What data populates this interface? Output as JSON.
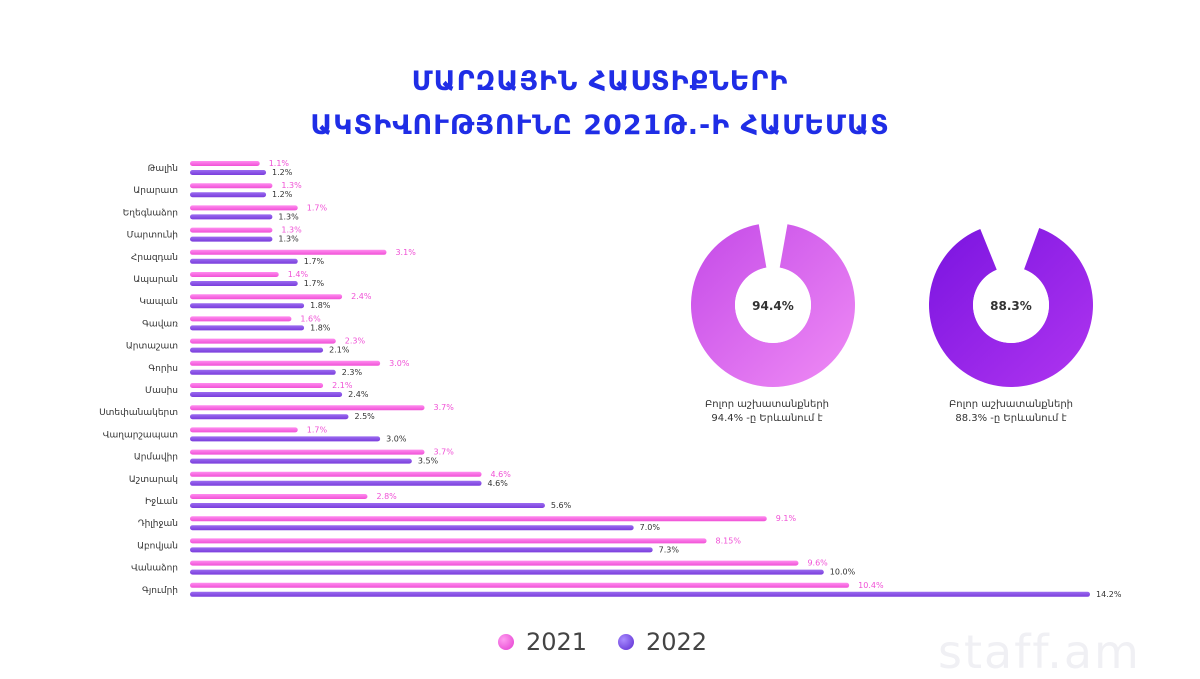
{
  "title": {
    "line1": "ՄԱՐԶԱՅԻՆ ՀԱՍՏԻՔՆԵՐԻ",
    "line2": "ԱԿՏԻՎՈՒԹՅՈՒՆԸ 2021Թ.-Ի ՀԱՄԵՄԱՏ"
  },
  "colors": {
    "s2021": "#f051d6",
    "s2022": "#7a3ddc"
  },
  "chart_data": [
    {
      "type": "bar",
      "orientation": "horizontal",
      "categories": [
        "Թալին",
        "Արարատ",
        "Եղեգնաձոր",
        "Մարտունի",
        "Հրազդան",
        "Ապարան",
        "Կապան",
        "Գավառ",
        "Արտաշատ",
        "Գորիս",
        "Մասիս",
        "Ստեփանակերտ",
        "Վաղարշապատ",
        "Արմավիր",
        "Աշտարակ",
        "Իջևան",
        "Դիլիջան",
        "Աբովյան",
        "Վանաձոր",
        "Գյումրի"
      ],
      "series": [
        {
          "name": "2021",
          "values": [
            1.1,
            1.3,
            1.7,
            1.3,
            3.1,
            1.4,
            2.4,
            1.6,
            2.3,
            3.0,
            2.1,
            3.7,
            1.7,
            3.7,
            4.6,
            2.8,
            9.1,
            8.15,
            9.6,
            10.4
          ],
          "labels": [
            "1.1%",
            "1.3%",
            "1.7%",
            "1.3%",
            "3.1%",
            "1.4%",
            "2.4%",
            "1.6%",
            "2.3%",
            "3.0%",
            "2.1%",
            "3.7%",
            "1.7%",
            "3.7%",
            "4.6%",
            "2.8%",
            "9.1%",
            "8.15%",
            "9.6%",
            "10.4%"
          ]
        },
        {
          "name": "2022",
          "values": [
            1.2,
            1.2,
            1.3,
            1.3,
            1.7,
            1.7,
            1.8,
            1.8,
            2.1,
            2.3,
            2.4,
            2.5,
            3.0,
            3.5,
            4.6,
            5.6,
            7.0,
            7.3,
            10.0,
            14.2
          ],
          "labels": [
            "1.2%",
            "1.2%",
            "1.3%",
            "1.3%",
            "1.7%",
            "1.7%",
            "1.8%",
            "1.8%",
            "2.1%",
            "2.3%",
            "2.4%",
            "2.5%",
            "3.0%",
            "3.5%",
            "4.6%",
            "5.6%",
            "7.0%",
            "7.3%",
            "10.0%",
            "14.2%"
          ]
        }
      ],
      "xlim": [
        0,
        14.2
      ],
      "grid": false,
      "legend": "bottom"
    },
    {
      "type": "pie",
      "style": "donut",
      "values": [
        94.4,
        5.6
      ],
      "center_label": "94.4%",
      "caption": [
        "Բոլոր աշխատանքների",
        "94.4% -ը Երևանում է"
      ],
      "color": "#e36cf0"
    },
    {
      "type": "pie",
      "style": "donut",
      "values": [
        88.3,
        11.7
      ],
      "center_label": "88.3%",
      "caption": [
        "Բոլոր աշխատանքների",
        "88.3% -ը Երևանում է"
      ],
      "color": "#9a22e6"
    }
  ],
  "legend": {
    "label_2021": "2021",
    "label_2022": "2022"
  },
  "watermark": "staff.am"
}
